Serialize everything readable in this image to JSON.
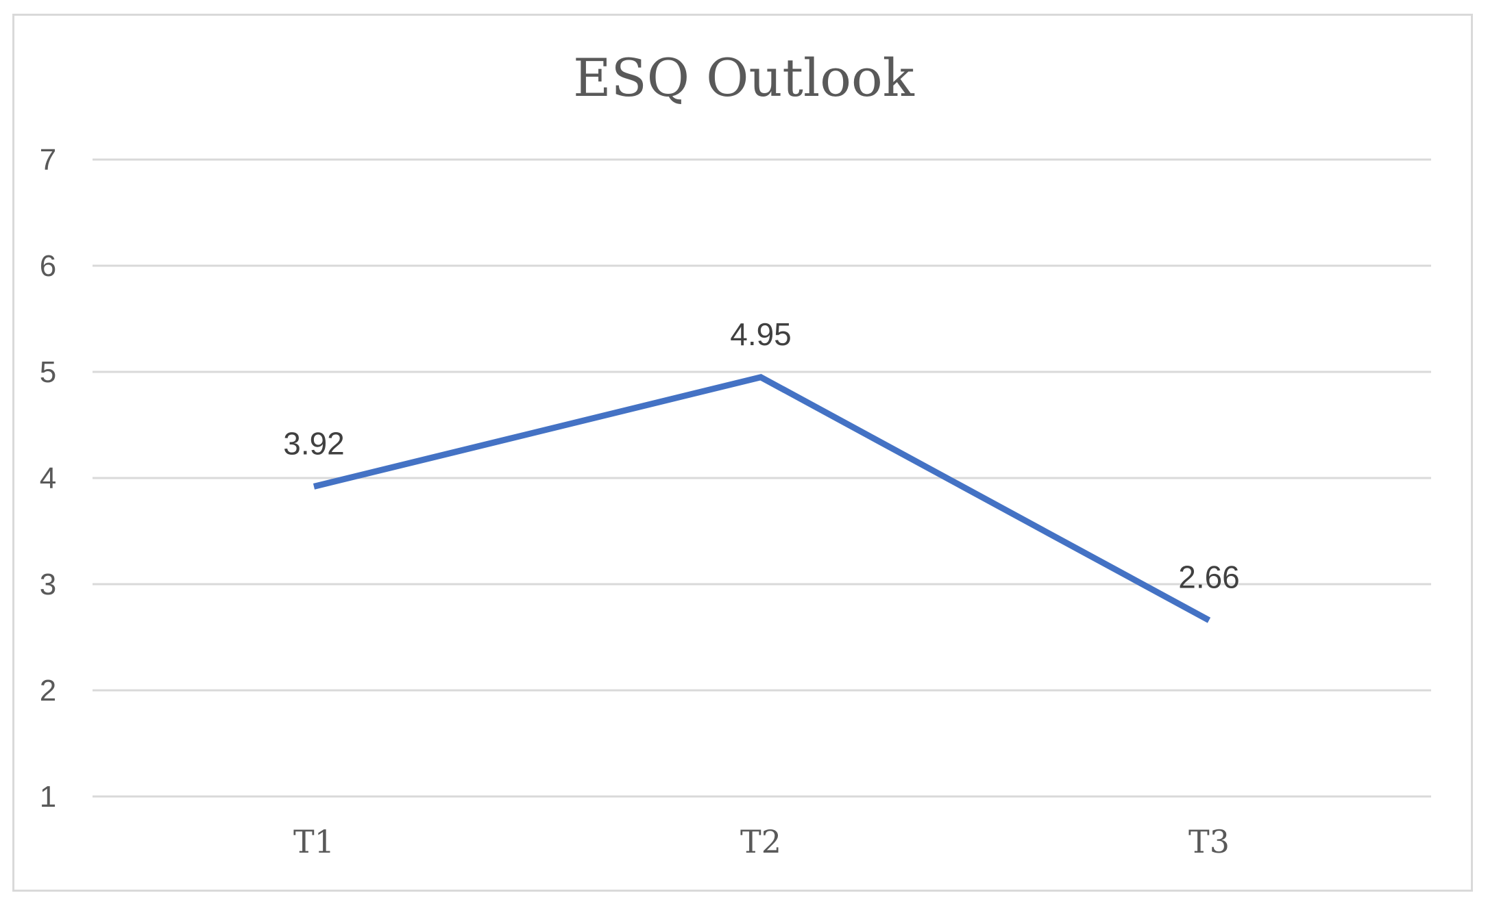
{
  "chart_data": {
    "type": "line",
    "title": "ESQ Outlook",
    "xlabel": "",
    "ylabel": "",
    "categories": [
      "T1",
      "T2",
      "T3"
    ],
    "series": [
      {
        "values": [
          3.92,
          4.95,
          2.66
        ],
        "data_labels": [
          "3.92",
          "4.95",
          "2.66"
        ],
        "color": "#4472c4"
      }
    ],
    "ylim": [
      1,
      7
    ],
    "yticks": [
      "1",
      "2",
      "3",
      "4",
      "5",
      "6",
      "7"
    ],
    "grid": true,
    "legend": "none"
  }
}
